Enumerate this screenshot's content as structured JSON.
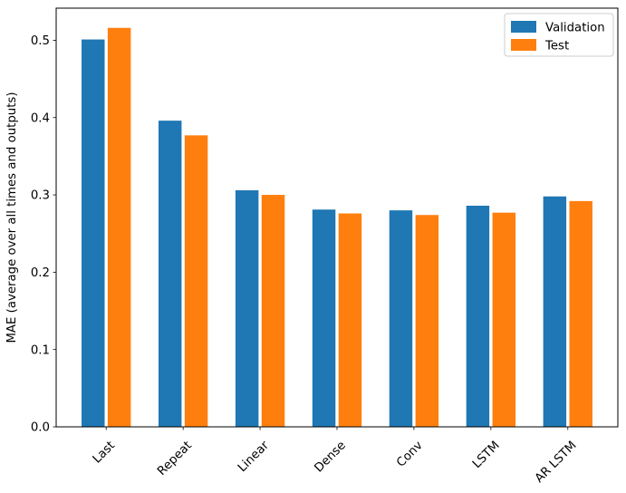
{
  "figure": {
    "background": "#ffffff"
  },
  "chart_data": {
    "type": "bar",
    "title": "",
    "xlabel": "",
    "ylabel": "MAE (average over all times and outputs)",
    "categories": [
      "Last",
      "Repeat",
      "Linear",
      "Dense",
      "Conv",
      "LSTM",
      "AR LSTM"
    ],
    "series": [
      {
        "name": "Validation",
        "color": "#1f77b4",
        "values": [
          0.501,
          0.396,
          0.306,
          0.281,
          0.28,
          0.286,
          0.298
        ]
      },
      {
        "name": "Test",
        "color": "#ff7f0e",
        "values": [
          0.516,
          0.377,
          0.3,
          0.276,
          0.274,
          0.277,
          0.292
        ]
      }
    ],
    "ylim": [
      0,
      0.5415
    ],
    "xlim": [
      -0.65,
      6.65
    ],
    "yticks": [
      0.0,
      0.1,
      0.2,
      0.3,
      0.4,
      0.5
    ],
    "ytick_labels": [
      "0.0",
      "0.1",
      "0.2",
      "0.3",
      "0.4",
      "0.5"
    ],
    "xtick_rotation": 45,
    "bar_width": 0.3,
    "bar_offset": 0.17,
    "grid": false,
    "spine_color": "#000000",
    "legend": {
      "position": "upper right",
      "entries": [
        "Validation",
        "Test"
      ],
      "border_color": "#cccccc",
      "background": "#ffffff"
    }
  }
}
